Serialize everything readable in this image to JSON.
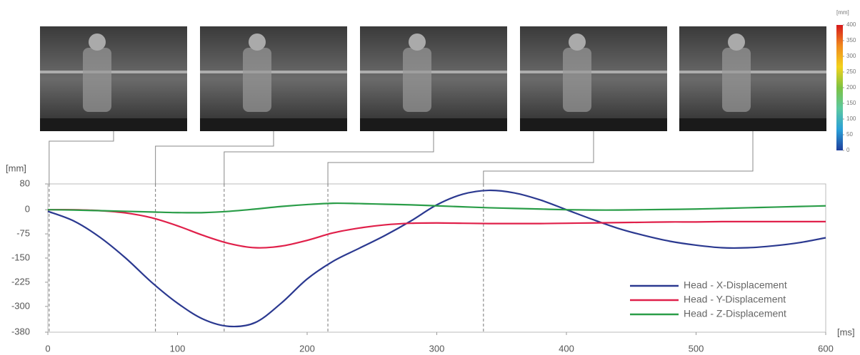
{
  "chart_data": [
    {
      "type": "line",
      "y_label": "[mm]",
      "x_label": "[ms]",
      "x": [
        0,
        20,
        40,
        60,
        80,
        100,
        120,
        140,
        160,
        180,
        200,
        220,
        240,
        260,
        280,
        300,
        320,
        340,
        360,
        380,
        400,
        420,
        440,
        460,
        480,
        500,
        520,
        540,
        560,
        580,
        600
      ],
      "series": [
        {
          "name": "Head - X-Displacement",
          "color": "#2b3990",
          "values": [
            -5,
            -35,
            -85,
            -150,
            -225,
            -290,
            -340,
            -362,
            -350,
            -290,
            -215,
            -160,
            -120,
            -80,
            -35,
            15,
            48,
            60,
            52,
            30,
            0,
            -30,
            -58,
            -80,
            -98,
            -110,
            -118,
            -118,
            -112,
            -102,
            -87
          ]
        },
        {
          "name": "Head - Y-Displacement",
          "color": "#e0204a",
          "values": [
            0,
            0,
            -3,
            -10,
            -25,
            -50,
            -80,
            -105,
            -118,
            -113,
            -95,
            -72,
            -57,
            -47,
            -42,
            -41,
            -42,
            -43,
            -43,
            -43,
            -42,
            -41,
            -40,
            -39,
            -38,
            -38,
            -37,
            -37,
            -37,
            -37,
            -37
          ]
        },
        {
          "name": "Head - Z-Displacement",
          "color": "#2a9d48",
          "values": [
            0,
            -1,
            -3,
            -5,
            -7,
            -9,
            -9,
            -5,
            2,
            10,
            16,
            20,
            19,
            17,
            15,
            12,
            9,
            6,
            4,
            2,
            0,
            -1,
            -1,
            0,
            1,
            2,
            4,
            6,
            8,
            10,
            12
          ]
        }
      ],
      "markers": [
        1,
        83,
        136,
        216,
        336
      ],
      "xlim": [
        0,
        600
      ],
      "xticks": [
        0,
        100,
        200,
        300,
        400,
        500,
        600
      ],
      "ylim": [
        -380,
        80
      ],
      "yticks": [
        80,
        0,
        -75,
        -150,
        -225,
        -300,
        -380
      ],
      "legend": "lower right"
    },
    {
      "type": "colorbar",
      "title": "[mm]",
      "lim": [
        0,
        400
      ],
      "ticks": [
        400,
        350,
        300,
        250,
        200,
        150,
        100,
        50,
        0
      ],
      "colors": [
        "#1f3f9c",
        "#2aa0d8",
        "#5cc8a0",
        "#7dc242",
        "#f3d21b",
        "#f08a1e",
        "#d7191c"
      ]
    }
  ]
}
